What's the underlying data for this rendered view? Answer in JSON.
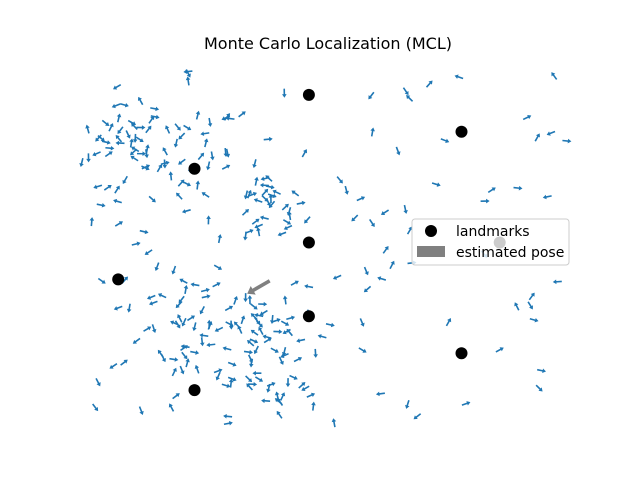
{
  "chart_data": {
    "type": "scatter",
    "title": "Monte Carlo Localization (MCL)",
    "xlabel": "",
    "ylabel": "",
    "xlim": [
      0,
      13
    ],
    "ylim": [
      0,
      10
    ],
    "axes_visible": false,
    "grid": false,
    "legend": {
      "placement": "center-right",
      "entries": [
        {
          "label": "landmarks",
          "marker": "circle",
          "color": "#000000"
        },
        {
          "label": "estimated pose",
          "marker": "arrow",
          "color": "#808080"
        }
      ]
    },
    "landmarks": {
      "name": "landmarks",
      "color": "#000000",
      "points": [
        [
          6,
          9
        ],
        [
          10,
          8
        ],
        [
          3,
          7
        ],
        [
          6,
          5
        ],
        [
          11,
          5
        ],
        [
          1,
          4
        ],
        [
          6,
          3
        ],
        [
          10,
          2
        ],
        [
          3,
          1
        ]
      ]
    },
    "estimated_pose": {
      "name": "estimated pose",
      "color": "#808080",
      "x": 4.7,
      "y": 3.8,
      "theta_deg": 210
    },
    "particles": {
      "color": "#1f77b4",
      "count": 300
    }
  }
}
